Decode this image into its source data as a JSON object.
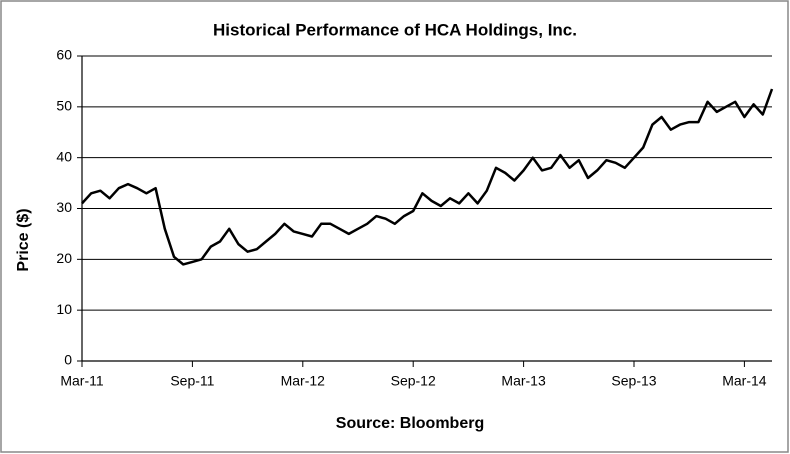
{
  "chart_data": {
    "type": "line",
    "title": "Historical Performance of HCA Holdings, Inc.",
    "ylabel": "Price ($)",
    "source": "Source: Bloomberg",
    "categories": [
      "Mar-11",
      null,
      null,
      null,
      null,
      null,
      null,
      null,
      null,
      null,
      null,
      null,
      "Sep-11",
      null,
      null,
      null,
      null,
      null,
      null,
      null,
      null,
      null,
      null,
      null,
      "Mar-12",
      null,
      null,
      null,
      null,
      null,
      null,
      null,
      null,
      null,
      null,
      null,
      "Sep-12",
      null,
      null,
      null,
      null,
      null,
      null,
      null,
      null,
      null,
      null,
      null,
      "Mar-13",
      null,
      null,
      null,
      null,
      null,
      null,
      null,
      null,
      null,
      null,
      null,
      "Sep-13",
      null,
      null,
      null,
      null,
      null,
      null,
      null,
      null,
      null,
      null,
      null,
      "Mar-14",
      null,
      null,
      null
    ],
    "series": [
      {
        "name": "HCA Holdings, Inc.",
        "color": "#000000",
        "values": [
          31,
          33,
          33.5,
          32,
          34,
          34.8,
          34,
          33,
          34,
          26,
          20.5,
          19,
          19.5,
          20,
          22.5,
          23.5,
          26,
          23,
          21.5,
          22,
          23.5,
          25,
          27,
          25.5,
          25,
          24.5,
          27,
          27,
          26,
          25,
          26,
          27,
          28.5,
          28,
          27,
          28.5,
          29.5,
          33,
          31.5,
          30.5,
          32,
          31,
          33,
          31,
          33.5,
          38,
          37,
          35.5,
          37.5,
          40,
          37.5,
          38,
          40.5,
          38,
          39.5,
          36,
          37.5,
          39.5,
          39,
          38,
          40,
          42,
          46.5,
          48,
          45.5,
          46.5,
          47,
          47,
          51,
          49,
          50,
          51,
          48,
          50.5,
          48.5,
          53.5
        ]
      }
    ],
    "ylim": [
      0,
      60
    ],
    "yticks": [
      0,
      10,
      20,
      30,
      40,
      50,
      60
    ],
    "grid": true
  }
}
